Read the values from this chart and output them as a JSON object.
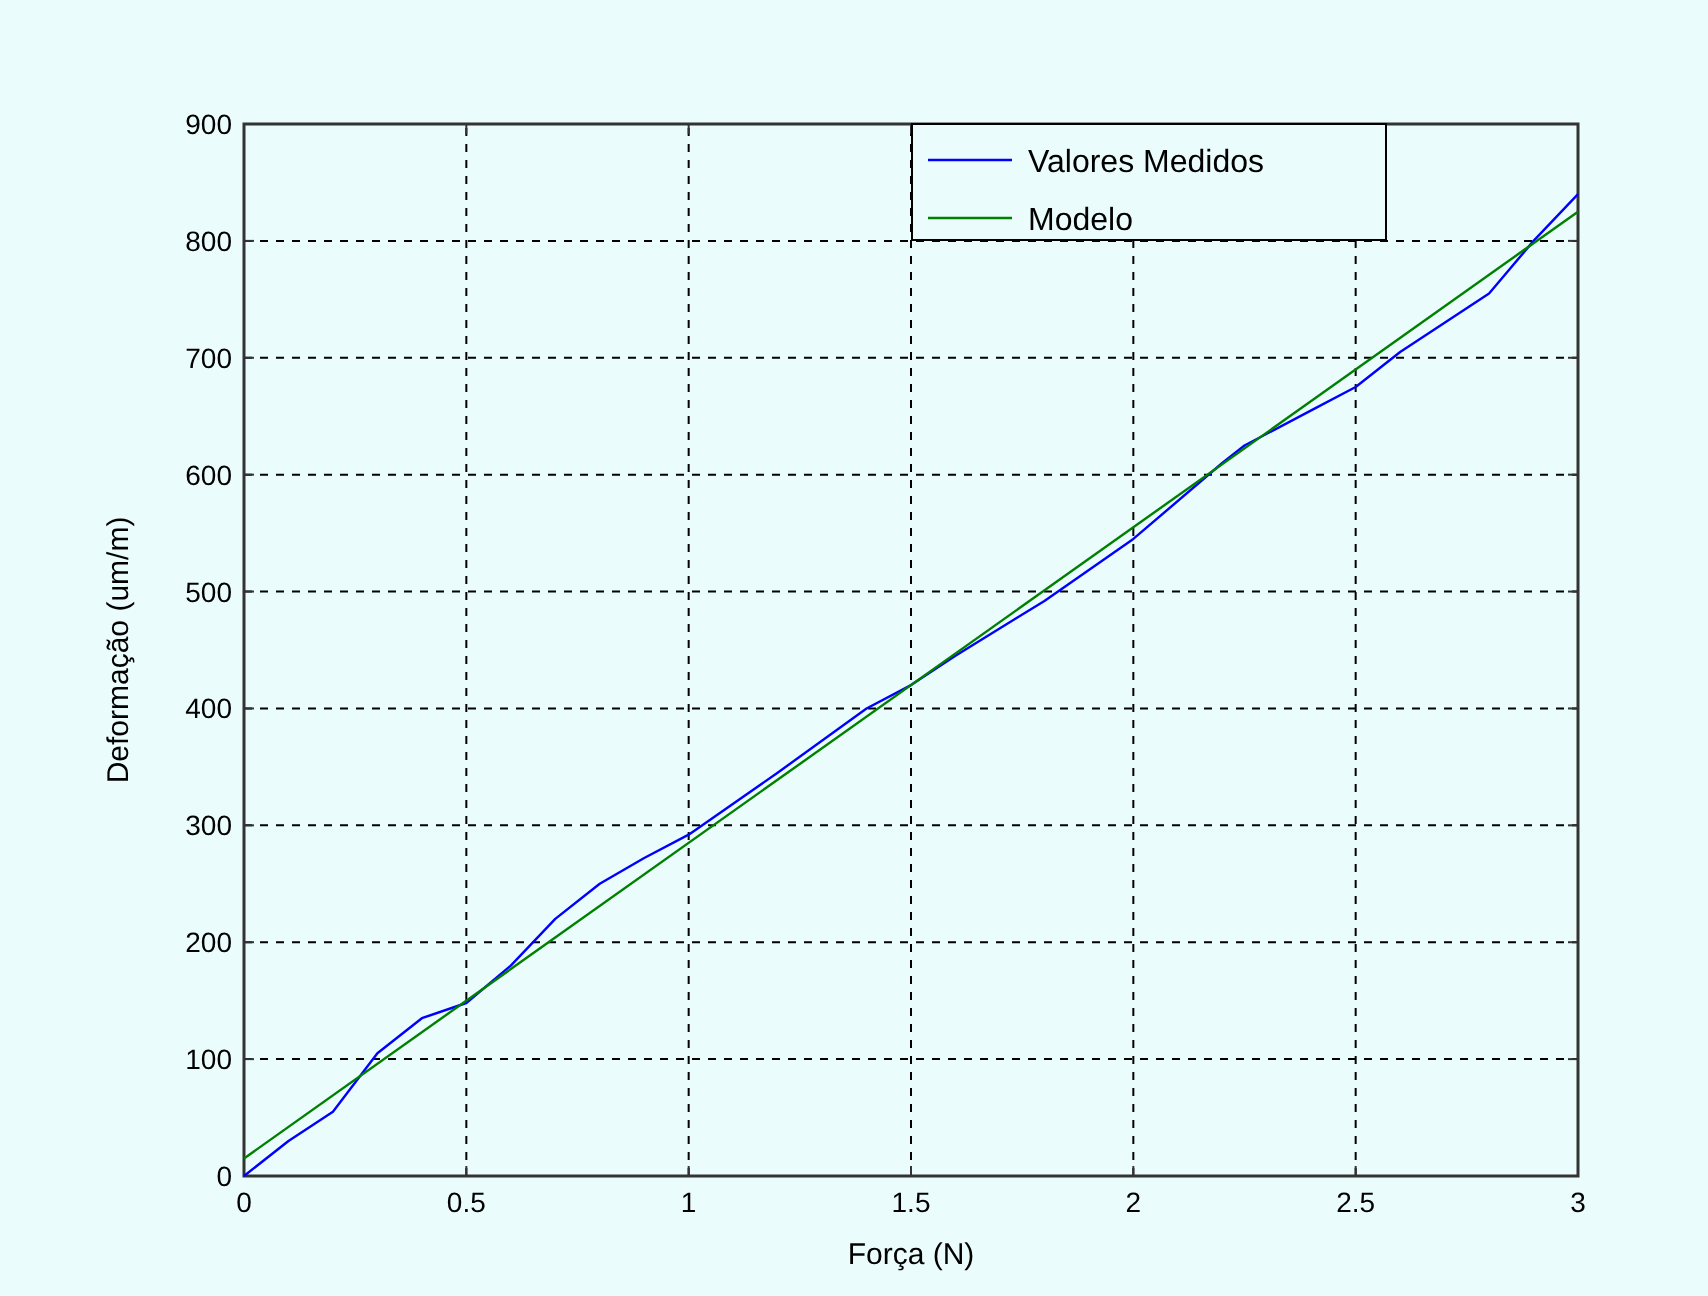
{
  "chart_data": {
    "type": "line",
    "xlabel": "Força (N)",
    "ylabel": "Deformação (um/m)",
    "xlim": [
      0,
      3
    ],
    "ylim": [
      0,
      900
    ],
    "xticks": [
      0,
      0.5,
      1,
      1.5,
      2,
      2.5,
      3
    ],
    "yticks": [
      0,
      100,
      200,
      300,
      400,
      500,
      600,
      700,
      800,
      900
    ],
    "grid": true,
    "legend": "top right",
    "marker": "none",
    "line_style": "solid",
    "series": [
      {
        "name": "Valores Medidos",
        "color": "#0000ff",
        "x": [
          0,
          0.1,
          0.2,
          0.25,
          0.3,
          0.4,
          0.5,
          0.6,
          0.7,
          0.8,
          0.9,
          1,
          1.2,
          1.4,
          1.5,
          1.6,
          1.8,
          2,
          2.2,
          2.25,
          2.4,
          2.5,
          2.6,
          2.8,
          2.9,
          3
        ],
        "values": [
          0,
          30,
          55,
          80,
          105,
          135,
          148,
          180,
          220,
          250,
          272,
          292,
          345,
          400,
          420,
          445,
          492,
          545,
          610,
          625,
          655,
          675,
          705,
          755,
          800,
          840
        ]
      },
      {
        "name": "Modelo",
        "color": "#008000",
        "x": [
          0,
          3
        ],
        "values": [
          15,
          825
        ]
      }
    ]
  }
}
